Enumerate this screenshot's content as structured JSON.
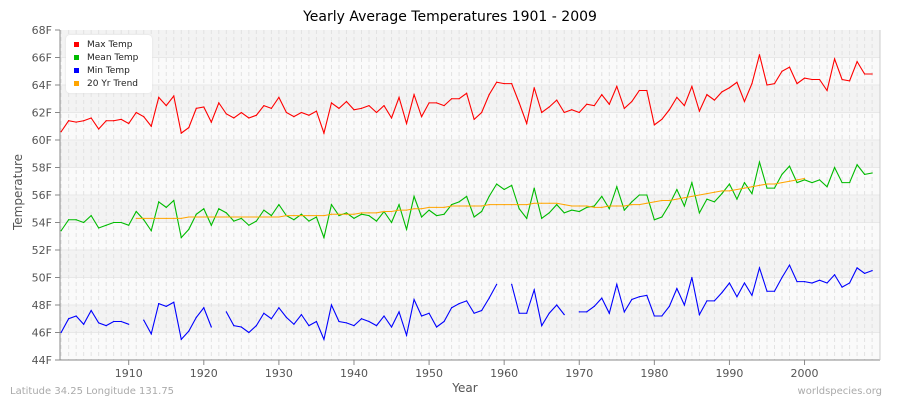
{
  "chart_data": {
    "type": "line",
    "title": "Yearly Average Temperatures 1901 - 2009",
    "xlabel": "Year",
    "ylabel": "Temperature",
    "xlim": [
      1901,
      2009
    ],
    "ylim": [
      44,
      68
    ],
    "yticks": [
      "44F",
      "46F",
      "48F",
      "50F",
      "52F",
      "54F",
      "56F",
      "58F",
      "60F",
      "62F",
      "64F",
      "66F",
      "68F"
    ],
    "xticks": [
      "1910",
      "1920",
      "1930",
      "1940",
      "1950",
      "1960",
      "1970",
      "1980",
      "1990",
      "2000"
    ],
    "grid": true,
    "legend_position": "top-left",
    "x_start": 1901,
    "series": [
      {
        "name": "Max Temp",
        "color": "#ff0000",
        "values": [
          60.6,
          61.4,
          61.3,
          61.4,
          61.6,
          60.8,
          61.4,
          61.4,
          61.5,
          61.2,
          62.0,
          61.7,
          61.0,
          63.1,
          62.5,
          63.2,
          60.5,
          60.9,
          62.3,
          62.4,
          61.3,
          62.7,
          61.9,
          61.6,
          62.0,
          61.6,
          61.8,
          62.5,
          62.3,
          63.1,
          62.0,
          61.7,
          62.0,
          61.8,
          62.1,
          60.5,
          62.7,
          62.3,
          62.8,
          62.2,
          62.3,
          62.5,
          62.0,
          62.5,
          61.6,
          63.1,
          61.2,
          63.3,
          61.7,
          62.7,
          62.7,
          62.5,
          63.0,
          63.0,
          63.4,
          61.5,
          62.0,
          63.3,
          64.2,
          64.1,
          64.1,
          62.7,
          61.2,
          63.8,
          62.0,
          62.4,
          62.9,
          62.0,
          62.2,
          62.0,
          62.6,
          62.5,
          63.3,
          62.6,
          63.9,
          62.3,
          62.8,
          63.6,
          63.6,
          61.1,
          61.5,
          62.2,
          63.1,
          62.5,
          63.9,
          62.1,
          63.3,
          62.9,
          63.5,
          63.8,
          64.2,
          62.8,
          64.1,
          66.2,
          64.0,
          64.1,
          65.0,
          65.3,
          64.1,
          64.5,
          64.4,
          64.4,
          63.6,
          65.9,
          64.4,
          64.3,
          65.7,
          64.8,
          64.8
        ]
      },
      {
        "name": "Mean Temp",
        "color": "#00bb00",
        "values": [
          53.4,
          54.2,
          54.2,
          54.0,
          54.5,
          53.6,
          53.8,
          54.0,
          54.0,
          53.8,
          54.8,
          54.2,
          53.4,
          55.5,
          55.1,
          55.6,
          52.9,
          53.5,
          54.6,
          55.0,
          53.8,
          55.0,
          54.7,
          54.1,
          54.3,
          53.8,
          54.1,
          54.9,
          54.5,
          55.3,
          54.5,
          54.2,
          54.6,
          54.1,
          54.4,
          52.9,
          55.3,
          54.5,
          54.7,
          54.3,
          54.6,
          54.5,
          54.1,
          54.8,
          54.0,
          55.3,
          53.5,
          55.9,
          54.4,
          54.9,
          54.5,
          54.6,
          55.3,
          55.5,
          55.9,
          54.4,
          54.8,
          55.9,
          56.8,
          56.4,
          56.7,
          55.0,
          54.3,
          56.5,
          54.3,
          54.7,
          55.3,
          54.7,
          54.9,
          54.8,
          55.1,
          55.2,
          55.9,
          55.0,
          56.6,
          54.9,
          55.5,
          56.0,
          56.0,
          54.2,
          54.4,
          55.3,
          56.4,
          55.2,
          56.9,
          54.7,
          55.7,
          55.5,
          56.1,
          56.8,
          55.7,
          56.9,
          56.1,
          58.4,
          56.5,
          56.5,
          57.5,
          58.1,
          56.9,
          57.1,
          56.9,
          57.1,
          56.6,
          58.0,
          56.9,
          56.9,
          58.2,
          57.5,
          57.6
        ]
      },
      {
        "name": "Min Temp",
        "color": "#0000ff",
        "values": [
          46.0,
          47.0,
          47.2,
          46.6,
          47.6,
          46.7,
          46.5,
          46.8,
          46.8,
          46.6,
          null,
          46.9,
          45.9,
          48.1,
          47.9,
          48.2,
          45.5,
          46.1,
          47.1,
          47.8,
          46.4,
          null,
          47.5,
          46.5,
          46.4,
          46.0,
          46.5,
          47.4,
          47.0,
          47.8,
          47.1,
          46.6,
          47.3,
          46.5,
          46.8,
          45.5,
          48.0,
          46.8,
          46.7,
          46.5,
          47.0,
          46.8,
          46.5,
          47.2,
          46.4,
          47.5,
          45.8,
          48.4,
          47.2,
          47.4,
          46.4,
          46.8,
          47.8,
          48.1,
          48.3,
          47.4,
          47.6,
          48.5,
          49.5,
          null,
          49.5,
          47.4,
          47.4,
          49.1,
          46.5,
          47.4,
          48.0,
          47.3,
          null,
          47.5,
          47.5,
          47.9,
          48.5,
          47.4,
          49.5,
          47.5,
          48.4,
          48.6,
          48.7,
          47.2,
          47.2,
          47.9,
          49.2,
          48.0,
          50.0,
          47.3,
          48.3,
          48.3,
          48.9,
          49.6,
          48.6,
          49.6,
          48.7,
          50.7,
          49.0,
          49.0,
          50.0,
          50.9,
          49.7,
          49.7,
          49.6,
          49.8,
          49.6,
          50.2,
          49.3,
          49.6,
          50.7,
          50.3,
          50.5
        ]
      },
      {
        "name": "20 Yr Trend",
        "color": "#ffa500",
        "x_start": 1911,
        "values": [
          54.3,
          54.3,
          54.3,
          54.3,
          54.3,
          54.3,
          54.3,
          54.4,
          54.4,
          54.4,
          54.4,
          54.4,
          54.4,
          54.4,
          54.4,
          54.4,
          54.4,
          54.4,
          54.4,
          54.4,
          54.5,
          54.5,
          54.5,
          54.5,
          54.5,
          54.5,
          54.6,
          54.6,
          54.6,
          54.6,
          54.7,
          54.7,
          54.7,
          54.8,
          54.8,
          54.9,
          54.9,
          55.0,
          55.0,
          55.1,
          55.1,
          55.1,
          55.2,
          55.2,
          55.2,
          55.2,
          55.2,
          55.3,
          55.3,
          55.3,
          55.3,
          55.3,
          55.3,
          55.4,
          55.4,
          55.4,
          55.4,
          55.3,
          55.2,
          55.2,
          55.2,
          55.1,
          55.1,
          55.2,
          55.2,
          55.2,
          55.3,
          55.3,
          55.4,
          55.5,
          55.6,
          55.6,
          55.7,
          55.8,
          55.9,
          56.0,
          56.1,
          56.2,
          56.3,
          56.3,
          56.4,
          56.5,
          56.6,
          56.7,
          56.8,
          56.8,
          56.9,
          57.0,
          57.1,
          57.2
        ]
      }
    ]
  },
  "footer": {
    "location": "Latitude 34.25 Longitude 131.75",
    "source": "worldspecies.org"
  }
}
